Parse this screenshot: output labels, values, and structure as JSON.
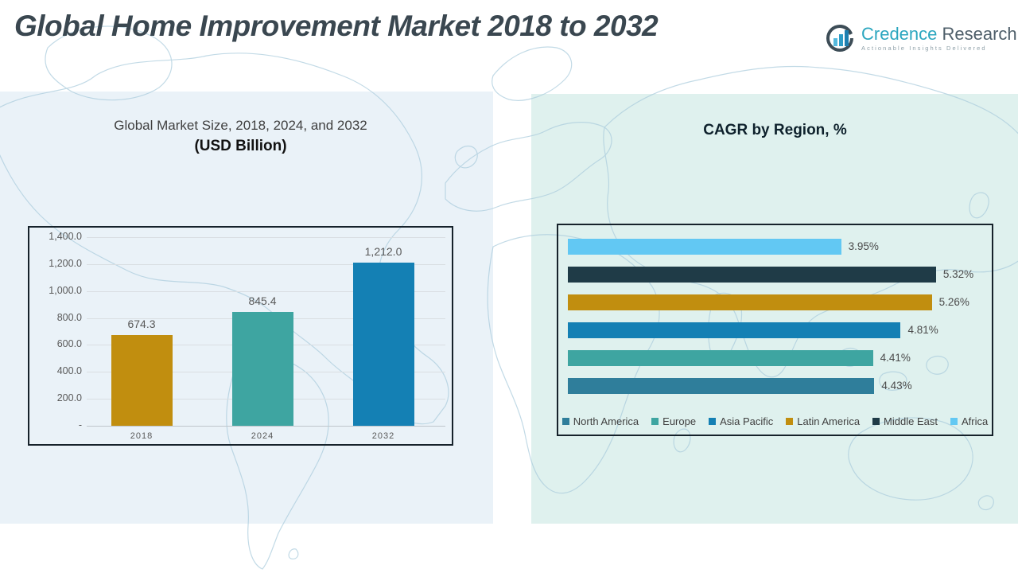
{
  "page": {
    "title": "Global Home Improvement Market 2018 to 2032"
  },
  "logo": {
    "brand_primary": "Credence",
    "brand_secondary": "Research",
    "tagline": "Actionable Insights Delivered",
    "icon": "bar-chart-circle-icon",
    "colors": {
      "primary": "#2BA6BF",
      "secondary": "#4E5E69",
      "tagline": "#8FA0A8"
    }
  },
  "colors": {
    "panel_left_bg": "#EAF2F8",
    "panel_right_bg": "#DFF1EE",
    "gold": "#C18E0F",
    "teal": "#3EA5A1",
    "blue": "#1480B4",
    "sky": "#62C8F3",
    "navy": "#1F3B47",
    "steel": "#2F7E9B",
    "grid": "#D9DEE2",
    "text_gray": "#595959",
    "card_border": "#16222B"
  },
  "chart_data": [
    {
      "type": "bar",
      "title_line1": "Global Market Size, 2018, 2024, and 2032",
      "title_line2": "(USD Billion)",
      "xlabel": "",
      "ylabel": "",
      "categories": [
        "2018",
        "2024",
        "2032"
      ],
      "values": [
        674.3,
        845.4,
        1212.0
      ],
      "value_labels": [
        "674.3",
        "845.4",
        "1,212.0"
      ],
      "bar_colors": [
        "#C18E0F",
        "#3EA5A1",
        "#1480B4"
      ],
      "ylim": [
        0,
        1400
      ],
      "ytick_step": 200,
      "ytick_labels": [
        "-",
        "200.0",
        "400.0",
        "600.0",
        "800.0",
        "1,000.0",
        "1,200.0",
        "1,400.0"
      ],
      "grid": true,
      "legend_position": "none"
    },
    {
      "type": "bar-horizontal",
      "title": "CAGR by Region, %",
      "xlabel": "",
      "ylabel": "",
      "categories": [
        "Africa",
        "Middle East",
        "Latin America",
        "Asia Pacific",
        "Europe",
        "North America"
      ],
      "values": [
        3.95,
        5.32,
        5.26,
        4.81,
        4.41,
        4.43
      ],
      "value_labels": [
        "3.95%",
        "5.32%",
        "5.26%",
        "4.81%",
        "4.41%",
        "4.43%"
      ],
      "bar_colors": [
        "#62C8F3",
        "#1F3B47",
        "#C18E0F",
        "#1480B4",
        "#3EA5A1",
        "#2F7E9B"
      ],
      "xlim": [
        0,
        5.6
      ],
      "grid": false,
      "legend_position": "bottom",
      "legend": [
        "North America",
        "Europe",
        "Asia Pacific",
        "Latin America",
        "Middle East",
        "Africa"
      ],
      "legend_colors": [
        "#2F7E9B",
        "#3EA5A1",
        "#1480B4",
        "#C18E0F",
        "#1F3B47",
        "#62C8F3"
      ]
    }
  ]
}
